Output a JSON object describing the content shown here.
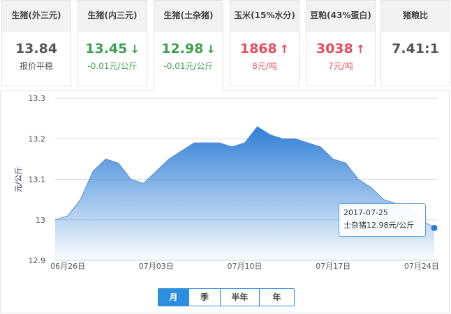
{
  "cards": [
    {
      "title": "生猪(外三元)",
      "value": "13.84",
      "arrow": "",
      "sub": "报价平稳",
      "color": "gray"
    },
    {
      "title": "生猪(内三元)",
      "value": "13.45",
      "arrow": "↓",
      "sub": "-0.01元/公斤",
      "color": "green"
    },
    {
      "title": "生猪(土杂猪)",
      "value": "12.98",
      "arrow": "↓",
      "sub": "-0.01元/公斤",
      "color": "green",
      "active": true
    },
    {
      "title": "玉米(15%水分)",
      "value": "1868",
      "arrow": "↑",
      "sub": "8元/吨",
      "color": "red"
    },
    {
      "title": "豆粕(43%蛋白)",
      "value": "3038",
      "arrow": "↑",
      "sub": "7元/吨",
      "color": "red"
    },
    {
      "title": "猪粮比",
      "value": "7.41:1",
      "arrow": "",
      "sub": "",
      "color": "gray"
    }
  ],
  "colors": {
    "series": "#2f7fd6",
    "green": "#3aa04a",
    "red": "#e84c5a",
    "selected": "#2d8ee0"
  },
  "chart_data": {
    "type": "area",
    "ylabel": "元/公斤",
    "ylim": [
      12.9,
      13.3
    ],
    "yticks": [
      "12.9",
      "13",
      "13.1",
      "13.2",
      "13.3"
    ],
    "xticks": [
      {
        "label": "06月26日",
        "date": "06-26"
      },
      {
        "label": "07月03日",
        "date": "07-03"
      },
      {
        "label": "07月10日",
        "date": "07-10"
      },
      {
        "label": "07月17日",
        "date": "07-17"
      },
      {
        "label": "07月24日",
        "date": "07-24"
      }
    ],
    "grid": true,
    "x": [
      "06-25",
      "06-26",
      "06-27",
      "06-28",
      "06-29",
      "06-30",
      "07-01",
      "07-02",
      "07-03",
      "07-04",
      "07-05",
      "07-06",
      "07-07",
      "07-08",
      "07-09",
      "07-10",
      "07-11",
      "07-12",
      "07-13",
      "07-14",
      "07-15",
      "07-16",
      "07-17",
      "07-18",
      "07-19",
      "07-20",
      "07-21",
      "07-22",
      "07-23",
      "07-24",
      "07-25"
    ],
    "values": [
      13.0,
      13.01,
      13.05,
      13.12,
      13.15,
      13.14,
      13.1,
      13.09,
      13.12,
      13.15,
      13.17,
      13.19,
      13.19,
      13.19,
      13.18,
      13.19,
      13.23,
      13.21,
      13.2,
      13.2,
      13.19,
      13.18,
      13.15,
      13.14,
      13.1,
      13.08,
      13.05,
      13.04,
      13.03,
      13.0,
      12.98
    ],
    "tooltip": {
      "date": "2017-07-25",
      "text": "土杂猪12.98元/公斤"
    }
  },
  "periods": [
    {
      "label": "月",
      "selected": true
    },
    {
      "label": "季"
    },
    {
      "label": "半年"
    },
    {
      "label": "年"
    }
  ]
}
